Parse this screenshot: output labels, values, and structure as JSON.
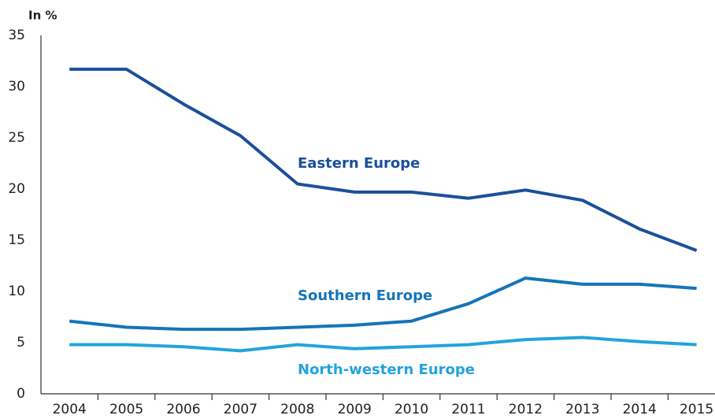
{
  "chart_data": {
    "type": "line",
    "y_label": "In %",
    "categories": [
      "2004",
      "2005",
      "2006",
      "2007",
      "2008",
      "2009",
      "2010",
      "2011",
      "2012",
      "2013",
      "2014",
      "2015"
    ],
    "series": [
      {
        "name": "Eastern Europe",
        "color": "#1b4f9b",
        "values": [
          31.7,
          31.7,
          28.3,
          25.2,
          20.5,
          19.7,
          19.7,
          19.1,
          19.9,
          18.9,
          16.1,
          14.0
        ]
      },
      {
        "name": "Southern Europe",
        "color": "#1574b9",
        "values": [
          7.1,
          6.5,
          6.3,
          6.3,
          6.5,
          6.7,
          7.1,
          8.8,
          11.3,
          10.7,
          10.7,
          10.3
        ]
      },
      {
        "name": "North-western Europe",
        "color": "#22a3dd",
        "values": [
          4.8,
          4.8,
          4.6,
          4.2,
          4.8,
          4.4,
          4.6,
          4.8,
          5.3,
          5.5,
          5.1,
          4.8
        ]
      }
    ],
    "ylim": [
      0,
      35
    ],
    "yticks": [
      0,
      5,
      10,
      15,
      20,
      25,
      30,
      35
    ],
    "grid": false
  }
}
